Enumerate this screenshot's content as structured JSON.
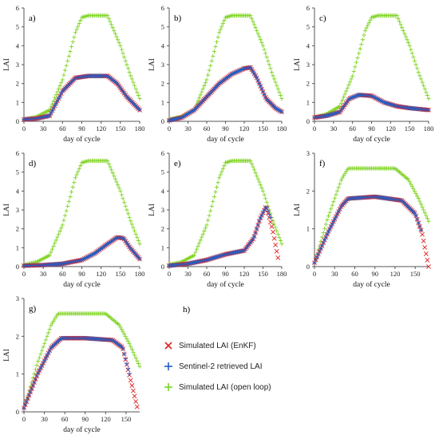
{
  "figure": {
    "legend": {
      "items": [
        {
          "label": "Simulated LAI (EnKF)",
          "color": "#e02020",
          "marker": "x"
        },
        {
          "label": "Sentinel-2 retrieved LAI",
          "color": "#1f5fc8",
          "marker": "plus"
        },
        {
          "label": "Simulated LAI (open loop)",
          "color": "#7ed321",
          "marker": "plus"
        }
      ]
    },
    "empty_panel_label": "h)"
  },
  "chart_data": [
    {
      "type": "scatter",
      "panel_label": "a)",
      "xlabel": "day of cycle",
      "ylabel": "LAI",
      "xlim": [
        0,
        180
      ],
      "ylim": [
        0,
        6
      ],
      "xticks": [
        0,
        30,
        60,
        90,
        120,
        150,
        180
      ],
      "yticks": [
        0,
        1,
        2,
        3,
        4,
        5,
        6
      ],
      "series": [
        {
          "name": "Simulated LAI (open loop)",
          "x": [
            0,
            20,
            40,
            60,
            80,
            90,
            100,
            130,
            150,
            165,
            180
          ],
          "y": [
            0.1,
            0.25,
            0.6,
            2.2,
            4.7,
            5.5,
            5.6,
            5.6,
            4.0,
            2.5,
            1.2
          ]
        },
        {
          "name": "Simulated LAI (EnKF)",
          "x": [
            0,
            20,
            40,
            60,
            80,
            100,
            130,
            145,
            160,
            180
          ],
          "y": [
            0.1,
            0.15,
            0.3,
            1.6,
            2.3,
            2.4,
            2.4,
            2.0,
            1.3,
            0.6
          ]
        },
        {
          "name": "Sentinel-2 retrieved LAI",
          "x": [
            0,
            20,
            40,
            60,
            80,
            100,
            130,
            145,
            160,
            180
          ],
          "y": [
            0.1,
            0.15,
            0.3,
            1.6,
            2.3,
            2.4,
            2.4,
            2.0,
            1.3,
            0.6
          ]
        }
      ]
    },
    {
      "type": "scatter",
      "panel_label": "b)",
      "xlabel": "day of cycle",
      "ylabel": "LAI",
      "xlim": [
        0,
        180
      ],
      "ylim": [
        0,
        6
      ],
      "xticks": [
        0,
        30,
        60,
        90,
        120,
        150,
        180
      ],
      "yticks": [
        0,
        1,
        2,
        3,
        4,
        5,
        6
      ],
      "series": [
        {
          "name": "Simulated LAI (open loop)",
          "x": [
            0,
            20,
            40,
            60,
            80,
            90,
            100,
            130,
            150,
            165,
            180
          ],
          "y": [
            0.1,
            0.25,
            0.6,
            2.2,
            4.7,
            5.5,
            5.6,
            5.6,
            4.0,
            2.5,
            1.2
          ]
        },
        {
          "name": "Simulated LAI (EnKF)",
          "x": [
            0,
            20,
            40,
            60,
            80,
            100,
            120,
            130,
            140,
            155,
            170,
            180
          ],
          "y": [
            0.05,
            0.2,
            0.6,
            1.3,
            2.0,
            2.5,
            2.8,
            2.85,
            2.3,
            1.2,
            0.7,
            0.5
          ]
        },
        {
          "name": "Sentinel-2 retrieved LAI",
          "x": [
            0,
            20,
            40,
            60,
            80,
            100,
            120,
            130,
            140,
            155,
            170,
            180
          ],
          "y": [
            0.05,
            0.2,
            0.6,
            1.3,
            2.0,
            2.5,
            2.8,
            2.85,
            2.3,
            1.2,
            0.7,
            0.5
          ]
        }
      ]
    },
    {
      "type": "scatter",
      "panel_label": "c)",
      "xlabel": "day of cycle",
      "ylabel": "LAI",
      "xlim": [
        0,
        180
      ],
      "ylim": [
        0,
        6
      ],
      "xticks": [
        0,
        30,
        60,
        90,
        120,
        150,
        180
      ],
      "yticks": [
        0,
        1,
        2,
        3,
        4,
        5,
        6
      ],
      "series": [
        {
          "name": "Simulated LAI (open loop)",
          "x": [
            0,
            20,
            40,
            60,
            80,
            90,
            100,
            130,
            150,
            165,
            180
          ],
          "y": [
            0.2,
            0.4,
            0.8,
            2.4,
            4.8,
            5.5,
            5.6,
            5.6,
            4.0,
            2.5,
            1.2
          ]
        },
        {
          "name": "Simulated LAI (EnKF)",
          "x": [
            0,
            20,
            40,
            55,
            70,
            90,
            110,
            130,
            150,
            180
          ],
          "y": [
            0.2,
            0.3,
            0.5,
            1.2,
            1.4,
            1.35,
            1.0,
            0.8,
            0.7,
            0.6
          ]
        },
        {
          "name": "Sentinel-2 retrieved LAI",
          "x": [
            0,
            20,
            40,
            55,
            70,
            90,
            110,
            130,
            150,
            180
          ],
          "y": [
            0.2,
            0.3,
            0.5,
            1.2,
            1.4,
            1.35,
            1.0,
            0.8,
            0.7,
            0.6
          ]
        }
      ]
    },
    {
      "type": "scatter",
      "panel_label": "d)",
      "xlabel": "day of cycle",
      "ylabel": "LAI",
      "xlim": [
        0,
        180
      ],
      "ylim": [
        0,
        6
      ],
      "xticks": [
        0,
        30,
        60,
        90,
        120,
        150,
        180
      ],
      "yticks": [
        0,
        1,
        2,
        3,
        4,
        5,
        6
      ],
      "series": [
        {
          "name": "Simulated LAI (open loop)",
          "x": [
            0,
            20,
            40,
            60,
            80,
            90,
            100,
            130,
            150,
            165,
            180
          ],
          "y": [
            0.1,
            0.25,
            0.6,
            2.2,
            4.7,
            5.5,
            5.6,
            5.6,
            4.0,
            2.5,
            1.2
          ]
        },
        {
          "name": "Simulated LAI (EnKF)",
          "x": [
            0,
            30,
            60,
            90,
            110,
            130,
            145,
            155,
            165,
            180
          ],
          "y": [
            0.05,
            0.08,
            0.15,
            0.35,
            0.7,
            1.2,
            1.55,
            1.5,
            1.0,
            0.4
          ]
        },
        {
          "name": "Sentinel-2 retrieved LAI",
          "x": [
            0,
            30,
            60,
            90,
            110,
            130,
            145,
            155,
            165,
            180
          ],
          "y": [
            0.05,
            0.08,
            0.15,
            0.35,
            0.7,
            1.2,
            1.55,
            1.5,
            1.0,
            0.4
          ]
        }
      ]
    },
    {
      "type": "scatter",
      "panel_label": "e)",
      "xlabel": "day of cycle",
      "ylabel": "LAI",
      "xlim": [
        0,
        180
      ],
      "ylim": [
        0,
        6
      ],
      "xticks": [
        0,
        30,
        60,
        90,
        120,
        150,
        180
      ],
      "yticks": [
        0,
        1,
        2,
        3,
        4,
        5,
        6
      ],
      "series": [
        {
          "name": "Simulated LAI (open loop)",
          "x": [
            0,
            20,
            40,
            60,
            80,
            90,
            100,
            130,
            150,
            165,
            180
          ],
          "y": [
            0.1,
            0.25,
            0.6,
            2.2,
            4.7,
            5.5,
            5.6,
            5.6,
            4.0,
            2.5,
            1.2
          ]
        },
        {
          "name": "Simulated LAI (EnKF)",
          "x": [
            0,
            30,
            60,
            90,
            120,
            135,
            145,
            155,
            165,
            175
          ],
          "y": [
            0.05,
            0.15,
            0.35,
            0.65,
            0.85,
            1.5,
            2.5,
            3.2,
            2.0,
            0.3
          ]
        },
        {
          "name": "Sentinel-2 retrieved LAI",
          "x": [
            0,
            30,
            60,
            90,
            120,
            135,
            145,
            155,
            162
          ],
          "y": [
            0.05,
            0.15,
            0.35,
            0.65,
            0.85,
            1.5,
            2.5,
            3.2,
            2.6
          ]
        }
      ]
    },
    {
      "type": "scatter",
      "panel_label": "f)",
      "xlabel": "day of cycle",
      "ylabel": "LAI",
      "xlim": [
        0,
        170
      ],
      "ylim": [
        0,
        3
      ],
      "xticks": [
        0,
        30,
        60,
        90,
        120,
        150
      ],
      "yticks": [
        0,
        1,
        2,
        3
      ],
      "series": [
        {
          "name": "Simulated LAI (open loop)",
          "x": [
            0,
            20,
            40,
            50,
            60,
            120,
            140,
            155,
            170
          ],
          "y": [
            0.1,
            1.3,
            2.3,
            2.6,
            2.6,
            2.6,
            2.3,
            1.8,
            1.2
          ]
        },
        {
          "name": "Simulated LAI (EnKF)",
          "x": [
            0,
            20,
            40,
            50,
            90,
            130,
            150,
            160,
            170
          ],
          "y": [
            0.1,
            0.9,
            1.6,
            1.8,
            1.85,
            1.75,
            1.4,
            0.9,
            0.0
          ]
        },
        {
          "name": "Sentinel-2 retrieved LAI",
          "x": [
            0,
            20,
            40,
            50,
            90,
            130,
            150,
            160
          ],
          "y": [
            0.1,
            0.9,
            1.6,
            1.8,
            1.85,
            1.75,
            1.4,
            0.9
          ]
        }
      ]
    },
    {
      "type": "scatter",
      "panel_label": "g)",
      "xlabel": "day of cycle",
      "ylabel": "LAI",
      "xlim": [
        0,
        170
      ],
      "ylim": [
        0,
        3
      ],
      "xticks": [
        0,
        30,
        60,
        90,
        120,
        150
      ],
      "yticks": [
        0,
        1,
        2,
        3
      ],
      "series": [
        {
          "name": "Simulated LAI (open loop)",
          "x": [
            0,
            20,
            40,
            50,
            60,
            120,
            140,
            155,
            170
          ],
          "y": [
            0.1,
            1.3,
            2.3,
            2.6,
            2.6,
            2.6,
            2.3,
            1.8,
            1.2
          ]
        },
        {
          "name": "Simulated LAI (EnKF)",
          "x": [
            0,
            20,
            40,
            55,
            90,
            130,
            145,
            160,
            168
          ],
          "y": [
            0.1,
            1.0,
            1.7,
            1.95,
            1.95,
            1.9,
            1.7,
            0.6,
            0.0
          ]
        },
        {
          "name": "Sentinel-2 retrieved LAI",
          "x": [
            0,
            20,
            40,
            55,
            90,
            130,
            145,
            155
          ],
          "y": [
            0.1,
            1.0,
            1.7,
            1.95,
            1.95,
            1.9,
            1.7,
            1.0
          ]
        }
      ]
    }
  ]
}
